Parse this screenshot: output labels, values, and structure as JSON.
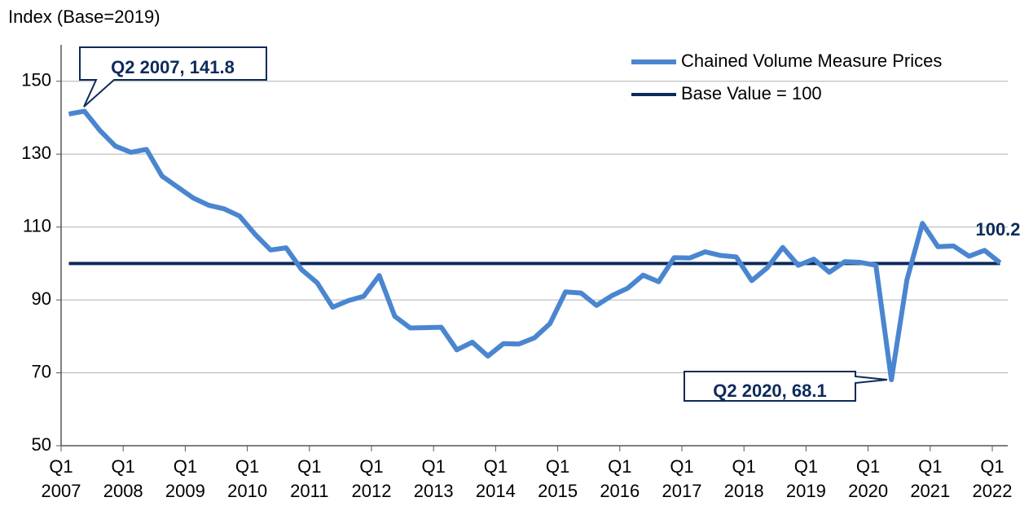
{
  "chart_data": {
    "type": "line",
    "y_axis_label": "Index (Base=2019)",
    "categories": [
      [
        "Q1",
        "2007"
      ],
      null,
      null,
      null,
      [
        "Q1",
        "2008"
      ],
      null,
      null,
      null,
      [
        "Q1",
        "2009"
      ],
      null,
      null,
      null,
      [
        "Q1",
        "2010"
      ],
      null,
      null,
      null,
      [
        "Q1",
        "2011"
      ],
      null,
      null,
      null,
      [
        "Q1",
        "2012"
      ],
      null,
      null,
      null,
      [
        "Q1",
        "2013"
      ],
      null,
      null,
      null,
      [
        "Q1",
        "2014"
      ],
      null,
      null,
      null,
      [
        "Q1",
        "2015"
      ],
      null,
      null,
      null,
      [
        "Q1",
        "2016"
      ],
      null,
      null,
      null,
      [
        "Q1",
        "2017"
      ],
      null,
      null,
      null,
      [
        "Q1",
        "2018"
      ],
      null,
      null,
      null,
      [
        "Q1",
        "2019"
      ],
      null,
      null,
      null,
      [
        "Q1",
        "2020"
      ],
      null,
      null,
      null,
      [
        "Q1",
        "2021"
      ],
      null,
      null,
      null,
      [
        "Q1",
        "2022"
      ]
    ],
    "series": [
      {
        "name": "Chained Volume Measure Prices",
        "color": "#4a86d0",
        "values": [
          141,
          141.8,
          136.5,
          132.2,
          130.5,
          131.3,
          124,
          121,
          118,
          116,
          115,
          113,
          108,
          103.7,
          104.3,
          98.3,
          94.7,
          88,
          89.8,
          91,
          96.7,
          85.5,
          82.3,
          82.4,
          82.5,
          76.3,
          78.4,
          74.6,
          78,
          77.9,
          79.6,
          83.5,
          92.2,
          91.9,
          88.5,
          91.2,
          93.2,
          96.8,
          95,
          101.6,
          101.5,
          103.2,
          102.2,
          101.8,
          95.3,
          98.8,
          104.4,
          99.5,
          101.2,
          97.6,
          100.5,
          100.3,
          99.5,
          68.1,
          95.5,
          111,
          104.6,
          104.8,
          102,
          103.6,
          100.2
        ]
      },
      {
        "name": "Base Value = 100",
        "color": "#0d2a5c",
        "values": [
          100,
          100,
          100,
          100,
          100,
          100,
          100,
          100,
          100,
          100,
          100,
          100,
          100,
          100,
          100,
          100,
          100,
          100,
          100,
          100,
          100,
          100,
          100,
          100,
          100,
          100,
          100,
          100,
          100,
          100,
          100,
          100,
          100,
          100,
          100,
          100,
          100,
          100,
          100,
          100,
          100,
          100,
          100,
          100,
          100,
          100,
          100,
          100,
          100,
          100,
          100,
          100,
          100,
          100,
          100,
          100,
          100,
          100,
          100,
          100,
          100
        ]
      }
    ],
    "annotations": [
      "Q2 2007, 141.8",
      "Q2 2020, 68.1",
      "100.2"
    ],
    "ylim": [
      50,
      160
    ],
    "yticks": [
      50,
      70,
      90,
      110,
      130,
      150
    ],
    "grid": true,
    "legend": "top-right"
  }
}
